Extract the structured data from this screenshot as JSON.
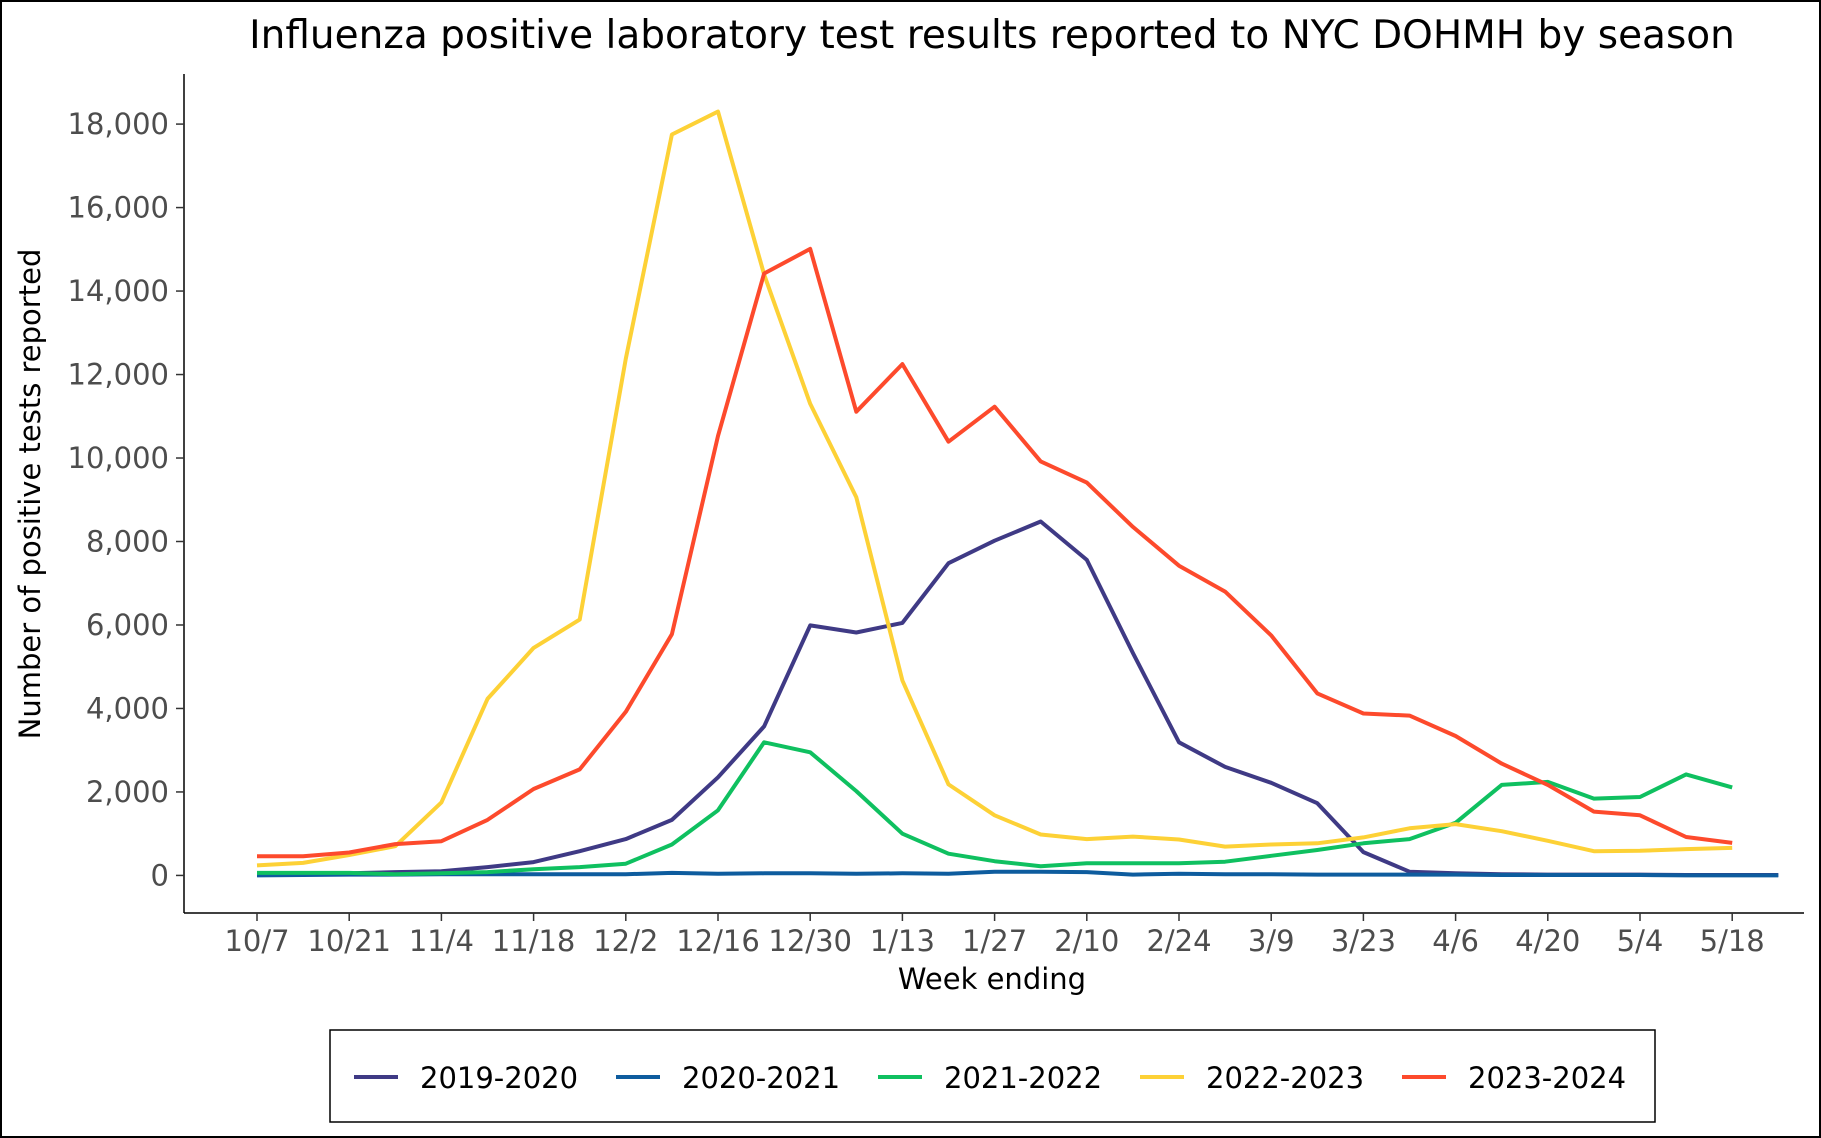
{
  "chart_data": {
    "type": "line",
    "title": "Influenza positive laboratory test results reported to NYC DOHMH by season",
    "xlabel": "Week ending",
    "ylabel": "Number of positive tests reported",
    "x_tick_labels": [
      "10/7",
      "10/21",
      "11/4",
      "11/18",
      "12/2",
      "12/16",
      "12/30",
      "1/13",
      "1/27",
      "2/10",
      "2/24",
      "3/9",
      "3/23",
      "4/6",
      "4/20",
      "5/4",
      "5/18"
    ],
    "y_ticks": [
      0,
      2000,
      4000,
      6000,
      8000,
      10000,
      12000,
      14000,
      16000,
      18000
    ],
    "y_tick_labels": [
      "0",
      "2,000",
      "4,000",
      "6,000",
      "8,000",
      "10,000",
      "12,000",
      "14,000",
      "16,000",
      "18,000"
    ],
    "ylim": [
      -900,
      19200
    ],
    "grid": false,
    "legend_position": "bottom",
    "series": [
      {
        "name": "2019-2020",
        "color": "#3F3A85",
        "values": [
          50,
          50,
          50,
          80,
          100,
          200,
          320,
          580,
          870,
          1330,
          2350,
          3570,
          5990,
          5820,
          6050,
          7480,
          8020,
          8480,
          7560,
          5330,
          3190,
          2600,
          2220,
          1730,
          560,
          90,
          50,
          30,
          20,
          20,
          20,
          10,
          10,
          10
        ]
      },
      {
        "name": "2020-2021",
        "color": "#0E5C9E",
        "values": [
          0,
          10,
          20,
          20,
          30,
          30,
          30,
          30,
          30,
          60,
          40,
          50,
          50,
          40,
          50,
          40,
          90,
          90,
          80,
          20,
          40,
          30,
          30,
          20,
          20,
          20,
          20,
          10,
          10,
          10,
          10,
          0,
          0,
          0
        ]
      },
      {
        "name": "2021-2022",
        "color": "#0FC060",
        "values": [
          60,
          60,
          60,
          30,
          50,
          80,
          150,
          200,
          280,
          740,
          1560,
          3190,
          2950,
          2020,
          1000,
          520,
          340,
          220,
          290,
          290,
          290,
          330,
          470,
          610,
          770,
          870,
          1260,
          2170,
          2240,
          1840,
          1880,
          2420,
          2110
        ]
      },
      {
        "name": "2022-2023",
        "color": "#FDD136",
        "values": [
          240,
          300,
          490,
          700,
          1750,
          4230,
          5450,
          6130,
          12380,
          17750,
          18300,
          14400,
          11300,
          9060,
          4670,
          2180,
          1440,
          980,
          870,
          930,
          860,
          690,
          740,
          770,
          910,
          1130,
          1230,
          1060,
          830,
          580,
          590,
          630,
          660
        ]
      },
      {
        "name": "2023-2024",
        "color": "#FD4A2C",
        "values": [
          460,
          460,
          550,
          750,
          820,
          1330,
          2070,
          2540,
          3920,
          5780,
          10530,
          14420,
          15010,
          11110,
          12250,
          10390,
          11230,
          9920,
          9410,
          8350,
          7420,
          6800,
          5750,
          4360,
          3880,
          3830,
          3340,
          2680,
          2170,
          1530,
          1440,
          920,
          780
        ]
      }
    ]
  }
}
